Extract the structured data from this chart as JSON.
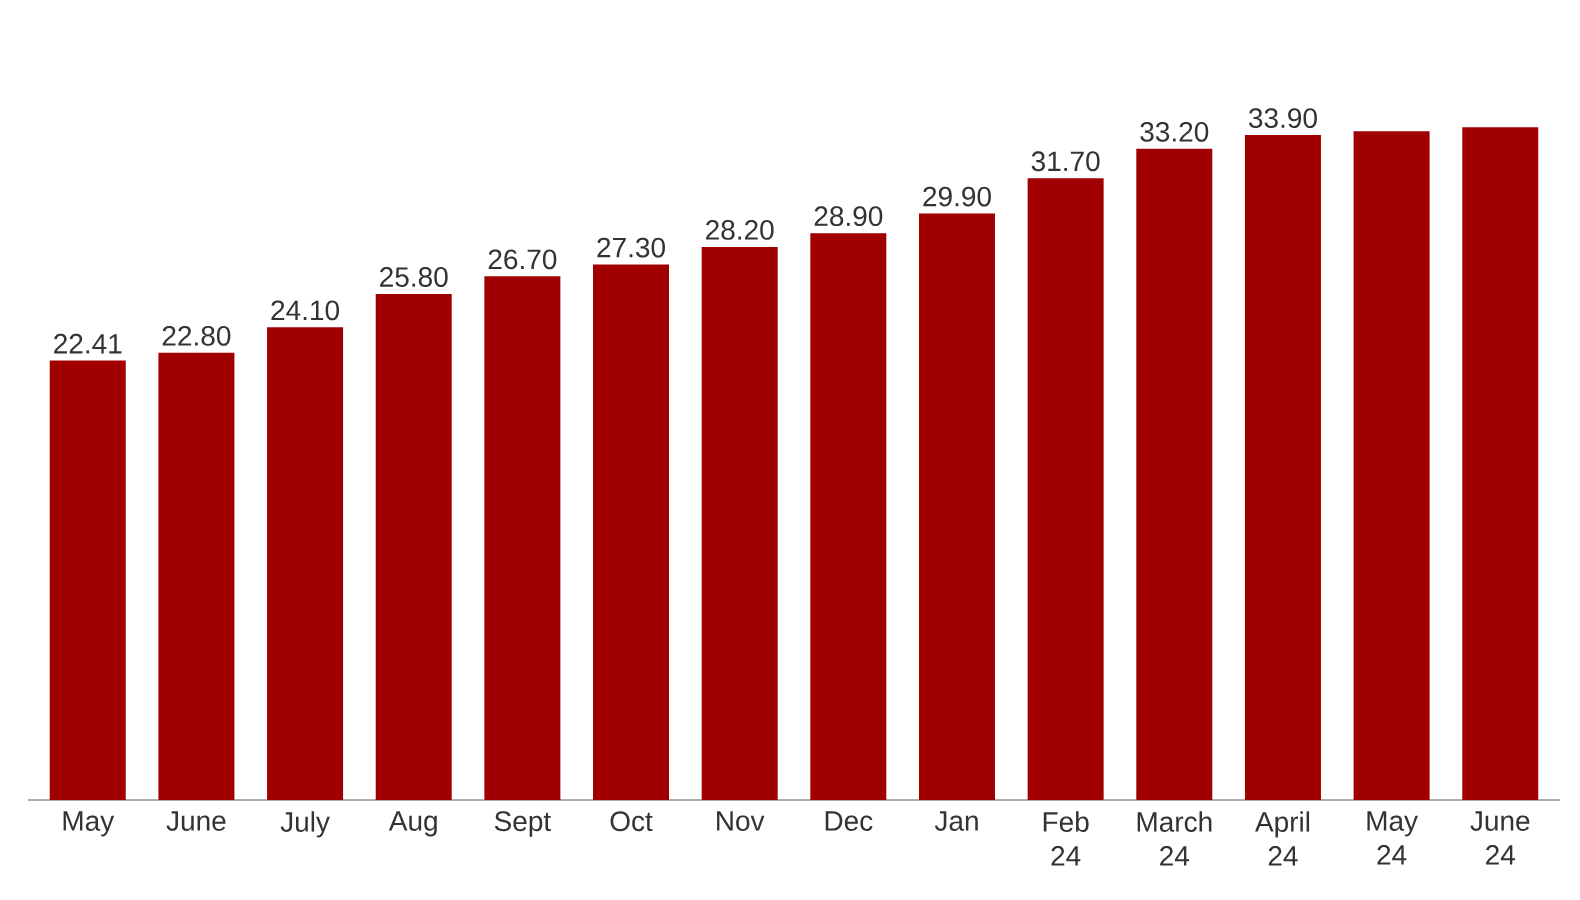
{
  "chart_data": {
    "type": "bar",
    "categories": [
      "May",
      "June",
      "July",
      "Aug",
      "Sept",
      "Oct",
      "Nov",
      "Dec",
      "Jan",
      "Feb 24",
      "March 24",
      "April 24",
      "May 24",
      "June 24"
    ],
    "values": [
      22.41,
      22.8,
      24.1,
      25.8,
      26.7,
      27.3,
      28.2,
      28.9,
      29.9,
      31.7,
      33.2,
      33.9,
      34.1,
      34.3
    ],
    "value_labels": [
      "22.41",
      "22.80",
      "24.10",
      "25.80",
      "26.70",
      "27.30",
      "28.20",
      "28.90",
      "29.90",
      "31.70",
      "33.20",
      "33.90",
      null,
      null
    ],
    "color": "#a00000"
  }
}
